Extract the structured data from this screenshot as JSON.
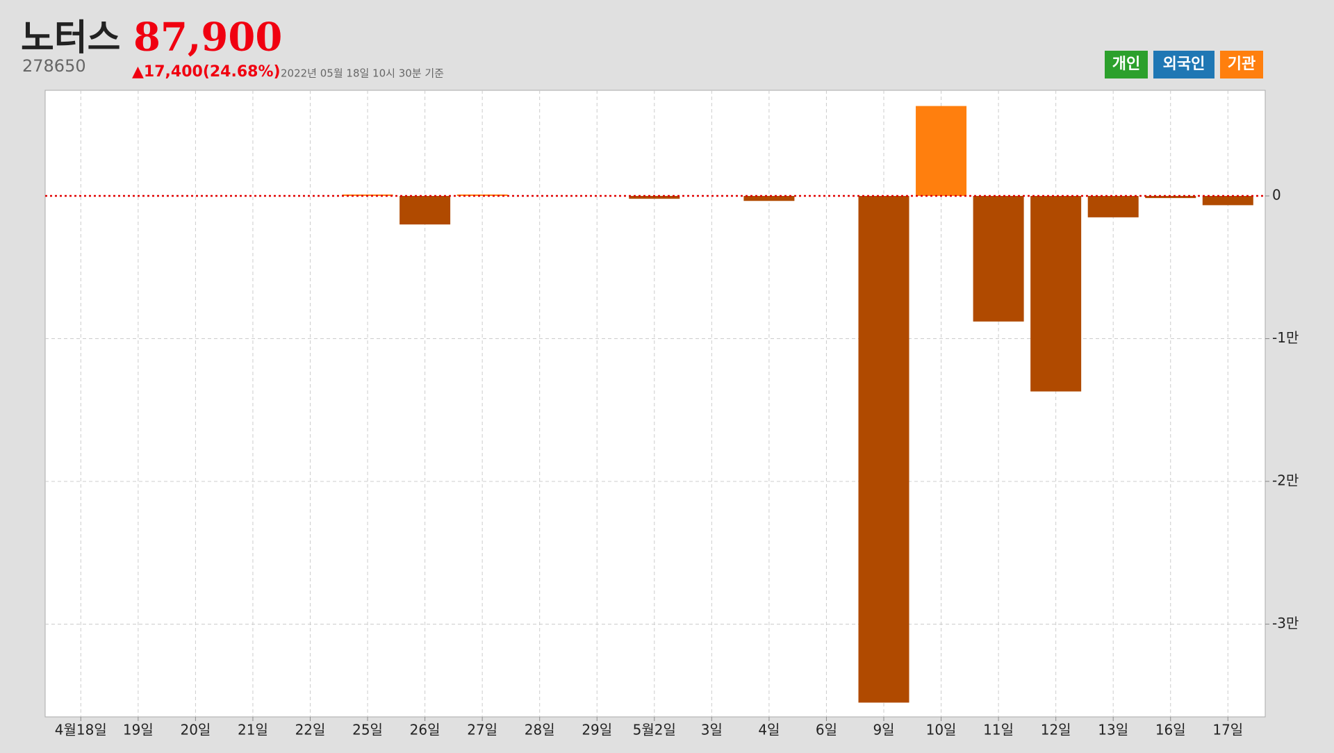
{
  "header": {
    "title": "노터스",
    "price": "87,900",
    "code": "278650",
    "change": "▲17,400(24.68%)",
    "timestamp": "2022년 05월 18일 10시 30분 기준"
  },
  "chart_data": {
    "type": "bar",
    "categories": [
      "4월18일",
      "19일",
      "20일",
      "21일",
      "22일",
      "25일",
      "26일",
      "27일",
      "28일",
      "29일",
      "5월2일",
      "3일",
      "4일",
      "6일",
      "9일",
      "10일",
      "11일",
      "12일",
      "13일",
      "16일",
      "17일"
    ],
    "series": [
      {
        "name": "개인",
        "color": "#2ca02c"
      },
      {
        "name": "외국인",
        "color": "#1f77b4"
      },
      {
        "name": "기관",
        "color": "#ff7f0e",
        "negative_color": "#b04a00",
        "values": [
          0,
          0,
          0,
          0,
          0,
          100,
          -2000,
          100,
          0,
          0,
          -200,
          0,
          -350,
          0,
          -35500,
          6300,
          -8800,
          -13700,
          -1500,
          -150,
          -650
        ]
      }
    ],
    "ylim": [
      -36500,
      7400
    ],
    "yticks": [
      {
        "value": 0,
        "label": "0"
      },
      {
        "value": -10000,
        "label": "-1만"
      },
      {
        "value": -20000,
        "label": "-2만"
      },
      {
        "value": -30000,
        "label": "-3만"
      }
    ],
    "grid": true,
    "zero_line_color": "#e00000"
  }
}
